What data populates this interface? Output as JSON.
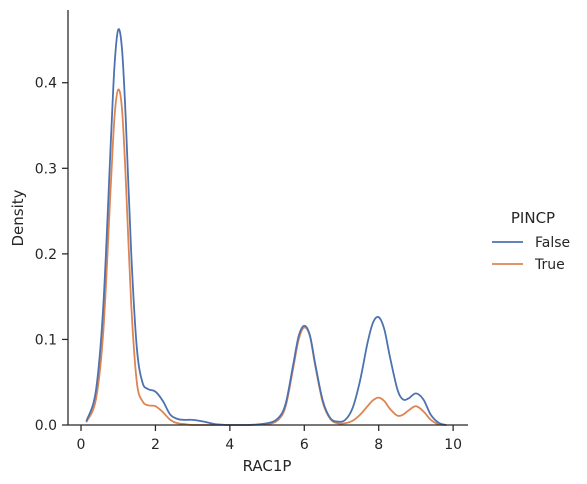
{
  "chart_data": {
    "type": "line",
    "title": "",
    "xlabel": "RAC1P",
    "ylabel": "Density",
    "xlim": [
      -0.35,
      10.4
    ],
    "ylim": [
      0,
      0.485
    ],
    "x_ticks": [
      0,
      2,
      4,
      6,
      8,
      10
    ],
    "x_tick_labels": [
      "0",
      "2",
      "4",
      "6",
      "8",
      "10"
    ],
    "y_ticks": [
      0.0,
      0.1,
      0.2,
      0.3,
      0.4
    ],
    "y_tick_labels": [
      "0.0",
      "0.1",
      "0.2",
      "0.3",
      "0.4"
    ],
    "grid": false,
    "legend": {
      "title": "PINCP",
      "placement": "right"
    },
    "series": [
      {
        "name": "False",
        "color": "#4c72b0",
        "x": [
          0.15,
          0.4,
          0.6,
          0.8,
          0.9,
          1.0,
          1.1,
          1.2,
          1.35,
          1.5,
          1.65,
          1.8,
          2.0,
          2.2,
          2.4,
          2.6,
          2.8,
          3.0,
          3.3,
          3.6,
          4.0,
          4.5,
          5.0,
          5.3,
          5.5,
          5.7,
          5.85,
          6.0,
          6.15,
          6.3,
          6.5,
          6.7,
          6.9,
          7.1,
          7.3,
          7.5,
          7.7,
          7.85,
          8.0,
          8.15,
          8.3,
          8.5,
          8.65,
          8.8,
          9.0,
          9.2,
          9.4,
          9.6,
          9.8
        ],
        "y": [
          0.005,
          0.04,
          0.14,
          0.33,
          0.42,
          0.462,
          0.44,
          0.36,
          0.2,
          0.09,
          0.05,
          0.042,
          0.039,
          0.028,
          0.012,
          0.007,
          0.006,
          0.006,
          0.004,
          0.001,
          0.0,
          0.0,
          0.002,
          0.008,
          0.025,
          0.07,
          0.104,
          0.116,
          0.105,
          0.07,
          0.028,
          0.008,
          0.004,
          0.006,
          0.02,
          0.052,
          0.096,
          0.12,
          0.126,
          0.112,
          0.08,
          0.042,
          0.03,
          0.031,
          0.037,
          0.03,
          0.012,
          0.003,
          0.0
        ]
      },
      {
        "name": "True",
        "color": "#dd8452",
        "x": [
          0.15,
          0.4,
          0.6,
          0.8,
          0.9,
          1.0,
          1.1,
          1.2,
          1.35,
          1.5,
          1.65,
          1.8,
          2.0,
          2.2,
          2.4,
          2.6,
          2.8,
          3.0,
          3.3,
          3.6,
          4.0,
          4.5,
          5.0,
          5.3,
          5.5,
          5.7,
          5.85,
          6.0,
          6.15,
          6.3,
          6.5,
          6.7,
          6.9,
          7.1,
          7.3,
          7.5,
          7.7,
          7.85,
          8.0,
          8.15,
          8.3,
          8.5,
          8.65,
          8.8,
          9.0,
          9.2,
          9.4,
          9.6,
          9.8
        ],
        "y": [
          0.004,
          0.03,
          0.11,
          0.28,
          0.36,
          0.392,
          0.37,
          0.29,
          0.14,
          0.05,
          0.028,
          0.023,
          0.022,
          0.015,
          0.006,
          0.002,
          0.001,
          0.0,
          0.0,
          0.0,
          0.0,
          0.0,
          0.001,
          0.006,
          0.022,
          0.066,
          0.1,
          0.114,
          0.104,
          0.068,
          0.026,
          0.007,
          0.002,
          0.002,
          0.005,
          0.012,
          0.022,
          0.029,
          0.032,
          0.028,
          0.019,
          0.011,
          0.012,
          0.017,
          0.022,
          0.016,
          0.006,
          0.001,
          0.0
        ]
      }
    ]
  }
}
